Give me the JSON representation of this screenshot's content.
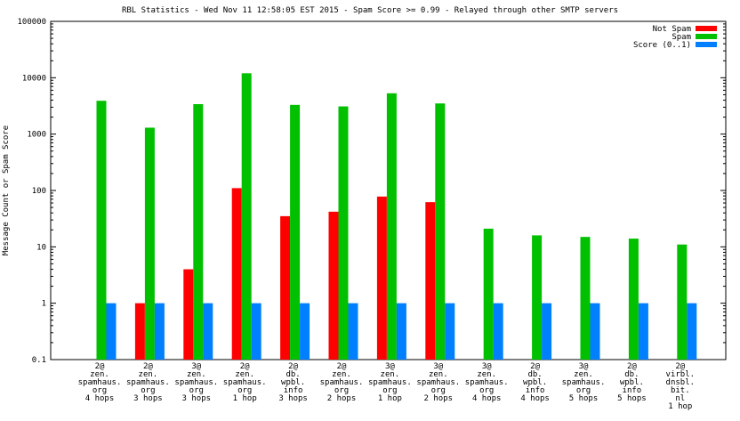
{
  "chart_data": {
    "type": "bar",
    "title": "RBL Statistics - Wed Nov 11 12:58:05 EST 2015 - Spam Score >= 0.99 - Relayed through other SMTP servers",
    "xlabel": "",
    "ylabel": "Message Count or Spam Score",
    "yscale": "log",
    "ylim": [
      0.1,
      100000
    ],
    "yticks": [
      "0.1",
      "1",
      "10",
      "100",
      "1000",
      "10000",
      "100000"
    ],
    "grid": false,
    "legend_position": "top-right",
    "categories": [
      [
        "2@",
        "zen.",
        "spamhaus.",
        "org",
        "4 hops"
      ],
      [
        "2@",
        "zen.",
        "spamhaus.",
        "org",
        "3 hops"
      ],
      [
        "3@",
        "zen.",
        "spamhaus.",
        "org",
        "3 hops"
      ],
      [
        "2@",
        "zen.",
        "spamhaus.",
        "org",
        "1 hop"
      ],
      [
        "2@",
        "db.",
        "wpbl.",
        "info",
        "3 hops"
      ],
      [
        "2@",
        "zen.",
        "spamhaus.",
        "org",
        "2 hops"
      ],
      [
        "3@",
        "zen.",
        "spamhaus.",
        "org",
        "1 hop"
      ],
      [
        "3@",
        "zen.",
        "spamhaus.",
        "org",
        "2 hops"
      ],
      [
        "3@",
        "zen.",
        "spamhaus.",
        "org",
        "4 hops"
      ],
      [
        "2@",
        "db.",
        "wpbl.",
        "info",
        "4 hops"
      ],
      [
        "3@",
        "zen.",
        "spamhaus.",
        "org",
        "5 hops"
      ],
      [
        "2@",
        "db.",
        "wpbl.",
        "info",
        "5 hops"
      ],
      [
        "2@",
        "virbl.",
        "dnsbl.",
        "bit.",
        "nl",
        "1 hop"
      ]
    ],
    "series": [
      {
        "name": "Not Spam",
        "color": "#ff0000",
        "values": [
          0,
          1,
          4,
          110,
          35,
          42,
          78,
          62,
          0,
          0,
          0,
          0,
          0
        ]
      },
      {
        "name": "Spam",
        "color": "#00c000",
        "values": [
          3900,
          1300,
          3400,
          12000,
          3300,
          3100,
          5300,
          3500,
          21,
          16,
          15,
          14,
          11
        ]
      },
      {
        "name": "Score (0..1)",
        "color": "#0080ff",
        "values": [
          1,
          1,
          1,
          1,
          1,
          1,
          1,
          1,
          1,
          1,
          1,
          1,
          1
        ]
      }
    ]
  }
}
